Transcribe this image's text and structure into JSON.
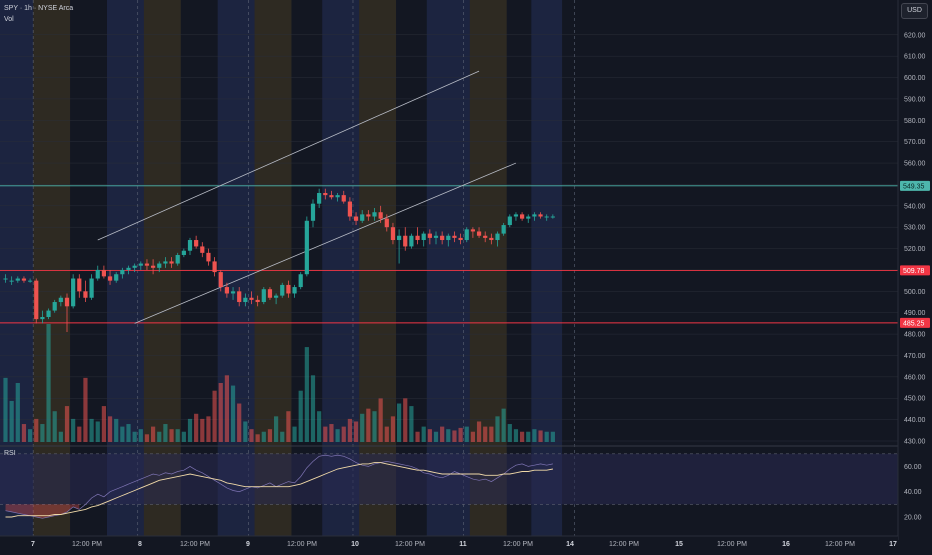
{
  "header": {
    "symbol_line": "SPY · 1h · NYSE Arca",
    "vol_label": "Vol",
    "currency_button": "USD"
  },
  "colors": {
    "background": "#131722",
    "up": "#26a69a",
    "down": "#ef5350",
    "session_pre": "#2e2a22",
    "session_post": "#1c2440",
    "grid": "#2a2e39",
    "channel": "#b8bcc6",
    "level_line": "#f23645",
    "resistance_line": "#4db6ac",
    "rsi_line": "#7e74b4",
    "rsi_ma": "#f0d9a8",
    "rsi_band": "#2a2a52"
  },
  "chart_data": [
    {
      "type": "candlestick",
      "title": "SPY · 1h · NYSE Arca",
      "currency": "USD",
      "y_axis_ticks": [
        430,
        440,
        450,
        460,
        470,
        480,
        490,
        500,
        510,
        520,
        530,
        540,
        550,
        560,
        570,
        580,
        590,
        600,
        610,
        620
      ],
      "y_axis_tick_labels": [
        "430.00",
        "440.00",
        "450.00",
        "460.00",
        "470.00",
        "480.00",
        "490.00",
        "500.00",
        "510.00",
        "520.00",
        "530.00",
        "540.00",
        "550.00",
        "560.00",
        "570.00",
        "580.00",
        "590.00",
        "600.00",
        "610.00",
        "620.00"
      ],
      "ylim": [
        427,
        630
      ],
      "x_axis_labels": [
        "7",
        "12:00 PM",
        "8",
        "12:00 PM",
        "9",
        "12:00 PM",
        "10",
        "12:00 PM",
        "11",
        "12:00 PM",
        "14",
        "12:00 PM",
        "15",
        "12:00 PM",
        "16",
        "12:00 PM",
        "17"
      ],
      "horizontal_levels": [
        {
          "price": 549.35,
          "label": "549.35",
          "role": "resistance"
        },
        {
          "price": 509.78,
          "label": "509.78",
          "role": "level"
        },
        {
          "price": 485.25,
          "label": "485.25",
          "role": "level"
        }
      ],
      "channel_lines": [
        {
          "from": [
            15,
            524.0
          ],
          "to": [
            77,
            603.0
          ]
        },
        {
          "from": [
            21,
            485.0
          ],
          "to": [
            83,
            560.0
          ]
        }
      ],
      "ohlc": [
        [
          506,
          508,
          504,
          506
        ],
        [
          505,
          507,
          503,
          505
        ],
        [
          505,
          507,
          504,
          506
        ],
        [
          506,
          507,
          504,
          505
        ],
        [
          505,
          506,
          504,
          505
        ],
        [
          505,
          506,
          485,
          487
        ],
        [
          487,
          491,
          485,
          488
        ],
        [
          488,
          492,
          487,
          491
        ],
        [
          491,
          496,
          490,
          495
        ],
        [
          495,
          498,
          493,
          497
        ],
        [
          497,
          499,
          481,
          493
        ],
        [
          493,
          508,
          492,
          506
        ],
        [
          506,
          508,
          497,
          500
        ],
        [
          500,
          505,
          495,
          497
        ],
        [
          497,
          508,
          496,
          506
        ],
        [
          506,
          512,
          505,
          510
        ],
        [
          510,
          512,
          506,
          507
        ],
        [
          507,
          510,
          503,
          505
        ],
        [
          505,
          509,
          504,
          508
        ],
        [
          508,
          511,
          506,
          510
        ],
        [
          510,
          512,
          508,
          511
        ],
        [
          511,
          513,
          509,
          512
        ],
        [
          512,
          514,
          510,
          513
        ],
        [
          513,
          515,
          510,
          512
        ],
        [
          512,
          515,
          508,
          511
        ],
        [
          511,
          514,
          509,
          513
        ],
        [
          513,
          516,
          511,
          514
        ],
        [
          514,
          516,
          511,
          513
        ],
        [
          513,
          518,
          512,
          517
        ],
        [
          517,
          520,
          516,
          519
        ],
        [
          519,
          525,
          517,
          524
        ],
        [
          524,
          526,
          520,
          521
        ],
        [
          521,
          523,
          516,
          518
        ],
        [
          518,
          520,
          512,
          514
        ],
        [
          514,
          516,
          507,
          509
        ],
        [
          509,
          510,
          500,
          502
        ],
        [
          502,
          504,
          497,
          499
        ],
        [
          499,
          502,
          496,
          500
        ],
        [
          500,
          502,
          493,
          495
        ],
        [
          495,
          499,
          493,
          497
        ],
        [
          497,
          500,
          494,
          496
        ],
        [
          496,
          498,
          493,
          495
        ],
        [
          495,
          502,
          494,
          501
        ],
        [
          501,
          502,
          496,
          497
        ],
        [
          497,
          499,
          494,
          498
        ],
        [
          498,
          504,
          497,
          503
        ],
        [
          503,
          505,
          497,
          499
        ],
        [
          499,
          503,
          497,
          502
        ],
        [
          502,
          509,
          501,
          508
        ],
        [
          508,
          535,
          507,
          533
        ],
        [
          533,
          543,
          530,
          541
        ],
        [
          541,
          548,
          539,
          546
        ],
        [
          546,
          548,
          543,
          545
        ],
        [
          545,
          547,
          543,
          544
        ],
        [
          544,
          546,
          542,
          545
        ],
        [
          545,
          547,
          541,
          542
        ],
        [
          542,
          544,
          533,
          535
        ],
        [
          535,
          537,
          531,
          533
        ],
        [
          533,
          538,
          532,
          536
        ],
        [
          536,
          538,
          533,
          535
        ],
        [
          535,
          539,
          533,
          537
        ],
        [
          537,
          540,
          532,
          534
        ],
        [
          534,
          536,
          528,
          530
        ],
        [
          530,
          532,
          522,
          524
        ],
        [
          524,
          529,
          513,
          526
        ],
        [
          526,
          530,
          519,
          521
        ],
        [
          521,
          527,
          520,
          526
        ],
        [
          526,
          530,
          522,
          524
        ],
        [
          524,
          528,
          521,
          527
        ],
        [
          527,
          529,
          522,
          525
        ],
        [
          525,
          528,
          522,
          526
        ],
        [
          526,
          528,
          522,
          524
        ],
        [
          524,
          527,
          521,
          526
        ],
        [
          526,
          528,
          523,
          525
        ],
        [
          525,
          527,
          522,
          524
        ],
        [
          524,
          530,
          523,
          529
        ],
        [
          529,
          530,
          525,
          528
        ],
        [
          528,
          530,
          525,
          526
        ],
        [
          526,
          528,
          523,
          525
        ],
        [
          525,
          527,
          522,
          524
        ],
        [
          524,
          528,
          521,
          527
        ],
        [
          527,
          532,
          526,
          531
        ],
        [
          531,
          536,
          530,
          535
        ],
        [
          535,
          537,
          533,
          536
        ],
        [
          536,
          537,
          533,
          534
        ],
        [
          534,
          536,
          532,
          535
        ],
        [
          535,
          537,
          533,
          536
        ],
        [
          536,
          537,
          534,
          535
        ],
        [
          535,
          536,
          533,
          535
        ],
        [
          535,
          536,
          534,
          535
        ]
      ],
      "volume": [
        50,
        32,
        46,
        14,
        10,
        18,
        14,
        92,
        24,
        8,
        28,
        18,
        12,
        50,
        18,
        16,
        28,
        20,
        18,
        12,
        14,
        8,
        10,
        6,
        12,
        8,
        14,
        10,
        10,
        8,
        18,
        22,
        18,
        20,
        40,
        46,
        52,
        44,
        30,
        16,
        10,
        6,
        8,
        10,
        20,
        8,
        24,
        12,
        40,
        74,
        52,
        24,
        12,
        14,
        10,
        12,
        18,
        16,
        22,
        26,
        24,
        34,
        12,
        20,
        30,
        34,
        28,
        8,
        12,
        10,
        8,
        12,
        10,
        9,
        11,
        12,
        8,
        16,
        12,
        12,
        20,
        26,
        14,
        10,
        8,
        8,
        10,
        9,
        8,
        8
      ]
    },
    {
      "type": "line",
      "title": "RSI",
      "y_axis_ticks": [
        20,
        40,
        60
      ],
      "y_axis_tick_labels": [
        "20.00",
        "40.00",
        "60.00"
      ],
      "ylim": [
        15,
        72
      ],
      "bands": [
        30,
        70
      ],
      "series": [
        {
          "values": [
            25,
            24,
            23,
            22,
            21,
            20,
            19,
            20,
            21,
            22,
            24,
            28,
            26,
            30,
            35,
            38,
            36,
            40,
            42,
            44,
            46,
            48,
            50,
            52,
            54,
            53,
            55,
            54,
            56,
            57,
            60,
            57,
            55,
            52,
            49,
            46,
            43,
            41,
            40,
            42,
            44,
            43,
            45,
            47,
            44,
            46,
            48,
            47,
            52,
            59,
            64,
            68,
            69,
            68,
            69,
            68,
            66,
            63,
            61,
            60,
            62,
            63,
            64,
            63,
            62,
            61,
            60,
            58,
            55,
            54,
            52,
            51,
            53,
            56,
            54,
            52,
            50,
            49,
            50,
            48,
            51,
            54,
            58,
            61,
            62,
            60,
            61,
            62,
            61,
            62
          ]
        },
        {
          "values": [
            20,
            20,
            21,
            21,
            21,
            21,
            21,
            21,
            22,
            22,
            23,
            24,
            25,
            26,
            28,
            29,
            31,
            33,
            35,
            37,
            39,
            41,
            43,
            45,
            47,
            49,
            50,
            51,
            52,
            53,
            54,
            53,
            52,
            51,
            50,
            49,
            47,
            46,
            45,
            44,
            44,
            44,
            44,
            44,
            44,
            44,
            44,
            45,
            46,
            48,
            50,
            52,
            54,
            56,
            58,
            59,
            60,
            61,
            62,
            62,
            63,
            63,
            62,
            61,
            60,
            59,
            58,
            57,
            57,
            56,
            55,
            54,
            54,
            54,
            54,
            54,
            54,
            54,
            53,
            53,
            53,
            54,
            54,
            55,
            56,
            56,
            57,
            57,
            57,
            58
          ]
        }
      ]
    }
  ]
}
